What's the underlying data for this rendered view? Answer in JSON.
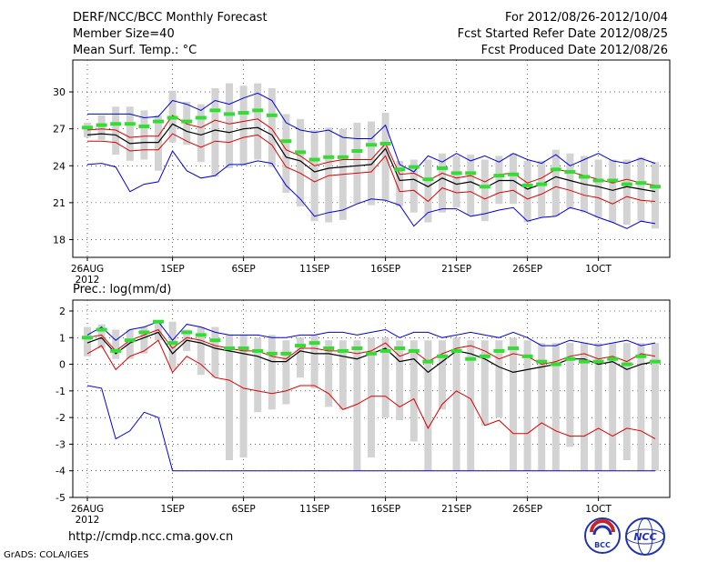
{
  "header": {
    "title": "DERF/NCC/BCC Monthly Forecast",
    "member_size": "Member Size=40",
    "variable": "Mean Surf. Temp.: °C",
    "period": "For 2012/08/26-2012/10/04",
    "start_date": "Fcst Started Refer Date 2012/08/25",
    "produced_date": "Fcst Produced Date 2012/08/26"
  },
  "footer": {
    "url": "http://cmdp.ncc.cma.gov.cn",
    "credit": "GrADS: COLA/IGES",
    "logo_left": "BCC",
    "logo_right": "NCC"
  },
  "colors": {
    "box": "#d3d3d3",
    "obs": "#33dd33",
    "mean": "#000000",
    "inner": "#dd0000",
    "outer": "#0000dd",
    "grid": "#000000"
  },
  "chart_data": [
    {
      "type": "line",
      "title": "Mean Surf. Temp.: °C",
      "x_tick_labels": [
        "26AUG",
        "1SEP",
        "6SEP",
        "11SEP",
        "16SEP",
        "21SEP",
        "26SEP",
        "1OCT"
      ],
      "x_tick_days": [
        0,
        6,
        11,
        16,
        21,
        26,
        31,
        36
      ],
      "x_year_label": "2012",
      "ylim": [
        17,
        32
      ],
      "y_ticks": [
        18,
        21,
        24,
        27,
        30
      ],
      "series": [
        {
          "name": "max",
          "values": [
            28.2,
            28.2,
            28.2,
            28.2,
            27.9,
            28.0,
            29.3,
            29.0,
            28.5,
            29.3,
            29.0,
            29.5,
            29.9,
            29.3,
            27.5,
            26.9,
            26.7,
            26.9,
            26.3,
            26.2,
            26.2,
            27.3,
            24.1,
            23.5,
            24.8,
            24.3,
            25.0,
            24.4,
            24.8,
            24.3,
            25.0,
            24.5,
            24.2,
            24.9,
            24.0,
            24.5,
            25.0,
            24.4,
            24.2,
            24.6,
            24.2
          ]
        },
        {
          "name": "upper",
          "values": [
            26.9,
            27.0,
            26.9,
            26.3,
            26.4,
            26.4,
            28.1,
            27.4,
            27.1,
            27.7,
            27.4,
            27.6,
            27.8,
            27.0,
            25.3,
            24.8,
            24.0,
            24.3,
            24.5,
            24.5,
            24.5,
            25.8,
            23.3,
            23.4,
            22.8,
            23.4,
            23.0,
            23.2,
            22.7,
            23.3,
            23.4,
            22.6,
            23.0,
            23.7,
            23.5,
            23.2,
            22.9,
            22.6,
            22.9,
            22.6,
            22.4
          ]
        },
        {
          "name": "mean",
          "values": [
            26.5,
            26.6,
            26.5,
            25.8,
            25.9,
            25.9,
            27.4,
            26.8,
            26.5,
            26.9,
            26.7,
            27.0,
            27.1,
            26.5,
            24.7,
            24.4,
            23.5,
            23.8,
            23.9,
            24.0,
            24.1,
            25.4,
            22.8,
            22.9,
            22.3,
            23.0,
            22.5,
            22.7,
            22.2,
            22.8,
            22.8,
            22.1,
            22.5,
            23.1,
            22.8,
            22.5,
            22.3,
            22.0,
            22.3,
            22.1,
            21.9
          ]
        },
        {
          "name": "lower",
          "values": [
            26.0,
            26.0,
            25.9,
            25.2,
            25.3,
            25.3,
            26.6,
            26.0,
            25.5,
            26.0,
            25.9,
            26.3,
            26.5,
            25.7,
            23.9,
            23.4,
            22.7,
            23.2,
            23.3,
            23.4,
            23.5,
            24.8,
            21.9,
            22.0,
            21.1,
            22.2,
            21.8,
            21.9,
            21.3,
            21.8,
            22.0,
            21.3,
            21.7,
            22.3,
            22.0,
            21.6,
            21.4,
            20.9,
            21.5,
            21.2,
            21.1
          ]
        },
        {
          "name": "min",
          "values": [
            24.1,
            24.2,
            23.9,
            21.9,
            22.5,
            22.7,
            25.2,
            23.6,
            23.0,
            23.2,
            24.1,
            24.1,
            24.4,
            24.2,
            22.4,
            21.3,
            19.9,
            20.2,
            20.4,
            20.9,
            21.3,
            21.2,
            20.8,
            19.1,
            20.2,
            20.5,
            20.5,
            19.9,
            20.1,
            20.4,
            20.6,
            19.5,
            19.8,
            19.9,
            20.6,
            20.3,
            19.8,
            19.4,
            18.9,
            19.5,
            19.3
          ]
        },
        {
          "name": "observed",
          "values": [
            27.1,
            27.3,
            27.4,
            27.4,
            27.2,
            27.6,
            27.9,
            27.6,
            27.9,
            28.5,
            28.2,
            28.3,
            28.5,
            28.1,
            26.0,
            25.1,
            24.5,
            24.7,
            24.7,
            25.2,
            25.7,
            25.8,
            23.7,
            23.9,
            22.9,
            23.8,
            23.4,
            23.4,
            22.3,
            23.2,
            23.3,
            22.4,
            22.5,
            23.7,
            23.5,
            23.1,
            22.8,
            22.8,
            22.5,
            22.6,
            22.3
          ]
        },
        {
          "name": "box_high",
          "values": [
            27.5,
            28.1,
            28.8,
            28.8,
            28.5,
            28.1,
            30.1,
            29.2,
            29.0,
            30.3,
            30.7,
            30.5,
            30.7,
            30.3,
            28.2,
            27.8,
            26.9,
            27.1,
            27.0,
            27.5,
            27.6,
            28.3,
            24.4,
            24.5,
            24.5,
            25.0,
            24.8,
            24.9,
            24.5,
            24.8,
            25.0,
            24.4,
            24.4,
            25.3,
            25.0,
            24.8,
            24.5,
            24.5,
            24.5,
            24.7,
            24.3
          ]
        },
        {
          "name": "box_low",
          "values": [
            26.3,
            26.1,
            24.9,
            24.4,
            24.5,
            23.6,
            25.9,
            25.7,
            24.3,
            23.1,
            23.8,
            24.0,
            24.5,
            23.9,
            21.8,
            20.7,
            19.5,
            19.4,
            19.6,
            20.9,
            20.8,
            21.2,
            20.7,
            20.2,
            19.4,
            20.2,
            20.6,
            20.0,
            19.5,
            20.9,
            20.9,
            19.4,
            19.8,
            19.9,
            20.5,
            20.2,
            19.8,
            19.4,
            19.2,
            19.5,
            18.9
          ]
        }
      ]
    },
    {
      "type": "line",
      "title": "Prec.: log(mm/d)",
      "x_tick_labels": [
        "26AUG",
        "1SEP",
        "6SEP",
        "11SEP",
        "16SEP",
        "21SEP",
        "26SEP",
        "1OCT"
      ],
      "x_tick_days": [
        0,
        6,
        11,
        16,
        21,
        26,
        31,
        36
      ],
      "x_year_label": "2012",
      "ylim": [
        -5,
        2
      ],
      "y_ticks": [
        -5,
        -4,
        -3,
        -2,
        -1,
        0,
        1,
        2
      ],
      "series": [
        {
          "name": "max",
          "values": [
            1.1,
            1.4,
            0.9,
            1.3,
            1.4,
            1.6,
            0.9,
            1.5,
            1.4,
            1.2,
            1.1,
            1.1,
            1.1,
            1.0,
            1.0,
            1.1,
            1.1,
            1.2,
            1.2,
            1.1,
            1.2,
            1.3,
            1.0,
            1.2,
            1.2,
            1.0,
            1.1,
            1.2,
            1.1,
            1.0,
            1.2,
            1.0,
            0.7,
            0.7,
            0.9,
            0.8,
            0.7,
            0.8,
            0.9,
            0.7,
            0.8
          ]
        },
        {
          "name": "upper",
          "values": [
            1.0,
            1.1,
            0.5,
            0.9,
            1.1,
            1.3,
            0.6,
            1.0,
            0.9,
            0.7,
            0.6,
            0.5,
            0.5,
            0.3,
            0.2,
            0.6,
            0.6,
            0.5,
            0.5,
            0.4,
            0.5,
            0.8,
            0.3,
            0.5,
            0.1,
            0.4,
            0.6,
            0.7,
            0.5,
            0.2,
            0.4,
            0.3,
            0.0,
            0.1,
            0.3,
            0.4,
            0.2,
            0.3,
            0.1,
            0.4,
            0.3
          ]
        },
        {
          "name": "mean",
          "values": [
            0.8,
            1.0,
            0.4,
            0.8,
            1.0,
            1.2,
            0.4,
            0.9,
            0.8,
            0.6,
            0.5,
            0.4,
            0.3,
            0.1,
            0.1,
            0.5,
            0.4,
            0.4,
            0.3,
            0.2,
            0.4,
            0.6,
            0.1,
            0.2,
            -0.3,
            0.1,
            0.5,
            0.4,
            0.2,
            -0.1,
            -0.3,
            -0.2,
            -0.1,
            0.0,
            0.2,
            0.2,
            0.0,
            0.1,
            -0.2,
            0.0,
            0.1
          ]
        },
        {
          "name": "lower",
          "values": [
            0.4,
            0.7,
            -0.2,
            0.3,
            0.5,
            0.9,
            -0.3,
            0.3,
            0.0,
            -0.5,
            -0.6,
            -0.9,
            -1.0,
            -1.1,
            -1.0,
            -0.8,
            -0.8,
            -1.1,
            -1.7,
            -1.5,
            -1.2,
            -1.2,
            -1.6,
            -1.3,
            -2.4,
            -1.5,
            -1.0,
            -1.3,
            -2.3,
            -2.1,
            -2.6,
            -2.6,
            -2.2,
            -2.5,
            -2.7,
            -2.7,
            -2.4,
            -2.7,
            -2.4,
            -2.5,
            -2.8
          ]
        },
        {
          "name": "min",
          "values": [
            -0.8,
            -0.9,
            -2.8,
            -2.5,
            -1.8,
            -2.0,
            -4.0,
            -4.0,
            -4.0,
            -4.0,
            -4.0,
            -4.0,
            -4.0,
            -4.0,
            -4.0,
            -4.0,
            -4.0,
            -4.0,
            -4.0,
            -4.0,
            -4.0,
            -4.0,
            -4.0,
            -4.0,
            -4.0,
            -4.0,
            -4.0,
            -4.0,
            -4.0,
            -4.0,
            -4.0,
            -4.0,
            -4.0,
            -4.0,
            -4.0,
            -4.0,
            -4.0,
            -4.0,
            -4.0,
            -4.0,
            -4.0
          ]
        },
        {
          "name": "observed",
          "values": [
            1.0,
            1.3,
            0.5,
            0.9,
            1.2,
            1.6,
            0.8,
            1.2,
            1.1,
            0.9,
            0.6,
            0.6,
            0.5,
            0.4,
            0.4,
            0.7,
            0.8,
            0.6,
            0.5,
            0.6,
            0.4,
            0.5,
            0.6,
            0.5,
            0.1,
            0.3,
            0.5,
            0.2,
            0.3,
            0.5,
            0.6,
            0.3,
            0.1,
            0.0,
            0.2,
            0.1,
            0.1,
            0.2,
            0.0,
            0.3,
            0.1
          ]
        },
        {
          "name": "box_high",
          "values": [
            1.4,
            1.5,
            1.3,
            1.3,
            1.4,
            1.6,
            1.6,
            1.3,
            1.4,
            1.4,
            1.1,
            1.1,
            1.0,
            1.1,
            0.9,
            1.0,
            1.1,
            0.9,
            0.9,
            0.9,
            1.0,
            1.0,
            0.9,
            0.9,
            0.9,
            0.9,
            1.0,
            0.9,
            0.9,
            0.9,
            1.0,
            0.9,
            0.8,
            0.8,
            0.8,
            0.8,
            0.8,
            0.8,
            0.8,
            0.8,
            0.8
          ]
        },
        {
          "name": "box_low",
          "values": [
            0.3,
            0.6,
            0.2,
            0.2,
            0.4,
            0.9,
            -0.2,
            0.5,
            -0.4,
            -0.5,
            -3.6,
            -3.5,
            -1.8,
            -1.7,
            -1.5,
            -0.5,
            -0.9,
            -1.6,
            -1.7,
            -4.0,
            -3.5,
            -2.0,
            -2.1,
            -2.9,
            -4.0,
            -1.7,
            -4.0,
            -4.0,
            -2.3,
            -2.0,
            -4.0,
            -4.0,
            -4.0,
            -4.0,
            -3.1,
            -4.0,
            -4.0,
            -4.0,
            -3.6,
            -4.0,
            -4.0
          ]
        }
      ]
    }
  ]
}
